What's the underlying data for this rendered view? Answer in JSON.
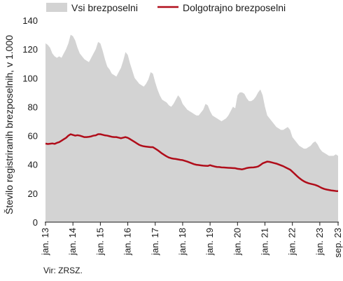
{
  "chart_data": {
    "type": "area",
    "ylabel": "Število registriranih brezposelnih, v 1.000",
    "ylim": [
      0,
      140
    ],
    "yticks": [
      0,
      20,
      40,
      60,
      80,
      100,
      120,
      140
    ],
    "x_tick_labels": [
      "jan. 13",
      "jan. 14",
      "jan. 15",
      "jan. 16",
      "jan. 17",
      "jan. 18",
      "jan. 19",
      "jan. 20",
      "jan. 21",
      "jan. 22",
      "jan. 23",
      "sep. 23"
    ],
    "legend_position": "top",
    "grid": false,
    "x_start": "2013-01",
    "series": [
      {
        "name": "Vsi brezposelni",
        "kind": "area",
        "color": "#d3d3d3",
        "values": [
          124,
          123,
          121,
          117,
          115,
          114,
          115,
          114,
          117,
          120,
          124,
          130,
          129,
          126,
          121,
          117,
          115,
          113,
          112,
          111,
          114,
          117,
          120,
          125,
          124,
          119,
          113,
          108,
          106,
          103,
          102,
          101,
          104,
          107,
          112,
          118,
          116,
          110,
          105,
          100,
          98,
          96,
          95,
          94,
          96,
          99,
          104,
          103,
          97,
          92,
          88,
          85,
          84,
          83,
          81,
          80,
          82,
          85,
          88,
          86,
          82,
          80,
          78,
          77,
          76,
          75,
          74,
          74,
          76,
          78,
          82,
          81,
          77,
          74,
          73,
          72,
          71,
          70,
          71,
          72,
          74,
          77,
          80,
          79,
          88,
          90,
          90,
          89,
          86,
          84,
          84,
          85,
          87,
          90,
          92,
          88,
          80,
          74,
          72,
          70,
          68,
          66,
          65,
          64,
          64,
          65,
          66,
          64,
          59,
          57,
          55,
          53,
          52,
          51,
          51,
          52,
          53,
          55,
          56,
          54,
          51,
          49,
          48,
          47,
          46,
          46,
          46,
          47,
          46
        ]
      },
      {
        "name": "Dolgotrajno brezposelni",
        "kind": "line",
        "color": "#b00d1a",
        "values": [
          54.5,
          54.2,
          54.4,
          54.6,
          54.3,
          55.0,
          55.5,
          56.5,
          57.5,
          58.5,
          60.0,
          61.0,
          60.5,
          60.0,
          60.3,
          60.0,
          59.5,
          59.0,
          59.0,
          59.2,
          59.5,
          60.0,
          60.2,
          61.0,
          61.0,
          60.6,
          60.2,
          60.0,
          59.6,
          59.2,
          59.0,
          59.0,
          58.6,
          58.2,
          58.6,
          59.0,
          58.5,
          57.6,
          56.6,
          55.6,
          54.6,
          53.6,
          53.0,
          52.6,
          52.4,
          52.2,
          52.0,
          52.0,
          51.0,
          50.0,
          48.8,
          47.6,
          46.6,
          45.6,
          44.8,
          44.3,
          44.0,
          43.8,
          43.5,
          43.2,
          43.0,
          42.5,
          42.0,
          41.4,
          40.8,
          40.2,
          39.8,
          39.6,
          39.4,
          39.2,
          39.1,
          39.0,
          39.5,
          39.0,
          38.6,
          38.3,
          38.2,
          38.0,
          37.9,
          37.8,
          37.7,
          37.6,
          37.5,
          37.4,
          37.0,
          36.8,
          36.6,
          37.0,
          37.5,
          37.8,
          37.9,
          38.0,
          38.2,
          38.6,
          39.6,
          40.8,
          41.4,
          42.0,
          41.8,
          41.4,
          41.0,
          40.6,
          40.0,
          39.4,
          38.8,
          38.0,
          37.2,
          36.4,
          35.0,
          33.5,
          32.0,
          30.6,
          29.4,
          28.4,
          27.6,
          27.0,
          26.6,
          26.2,
          25.8,
          25.2,
          24.4,
          23.6,
          23.0,
          22.6,
          22.3,
          22.0,
          21.8,
          21.6,
          21.5
        ]
      }
    ]
  },
  "source": "Vir: ZRSZ."
}
